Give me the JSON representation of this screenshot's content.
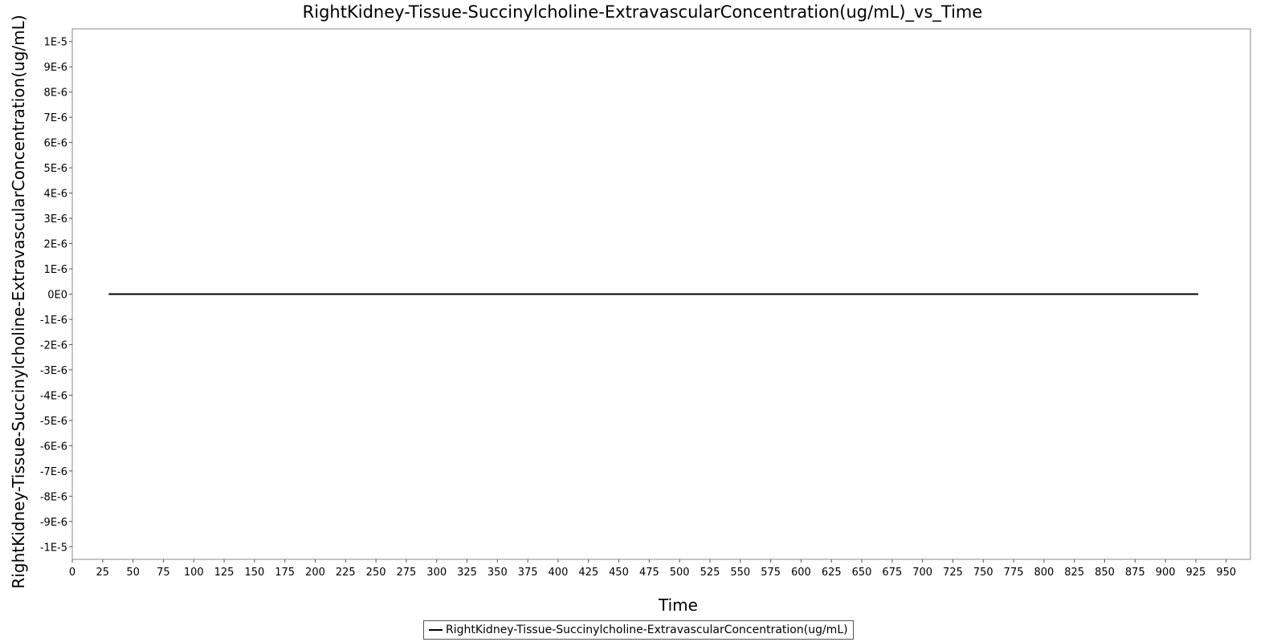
{
  "chart_data": {
    "type": "line",
    "title": "RightKidney-Tissue-Succinylcholine-ExtravascularConcentration(ug/mL)_vs_Time",
    "xlabel": "Time",
    "ylabel": "RightKidney-Tissue-Succinylcholine-ExtravascularConcentration(ug/mL)",
    "xlim": [
      0,
      970
    ],
    "ylim": [
      -1.05e-05,
      1.05e-05
    ],
    "x_ticks": [
      0,
      25,
      50,
      75,
      100,
      125,
      150,
      175,
      200,
      225,
      250,
      275,
      300,
      325,
      350,
      375,
      400,
      425,
      450,
      475,
      500,
      525,
      550,
      575,
      600,
      625,
      650,
      675,
      700,
      725,
      750,
      775,
      800,
      825,
      850,
      875,
      900,
      925,
      950
    ],
    "y_ticks": [
      1e-05,
      9e-06,
      8e-06,
      7e-06,
      6e-06,
      5e-06,
      4e-06,
      3e-06,
      2e-06,
      1e-06,
      0,
      -1e-06,
      -2e-06,
      -3e-06,
      -4e-06,
      -5e-06,
      -6e-06,
      -7e-06,
      -8e-06,
      -9e-06,
      -1e-05
    ],
    "y_tick_labels": [
      "1E-5",
      "9E-6",
      "8E-6",
      "7E-6",
      "6E-6",
      "5E-6",
      "4E-6",
      "3E-6",
      "2E-6",
      "1E-6",
      "0E0",
      "-1E-6",
      "-2E-6",
      "-3E-6",
      "-4E-6",
      "-5E-6",
      "-6E-6",
      "-7E-6",
      "-8E-6",
      "-9E-6",
      "-1E-5"
    ],
    "grid": true,
    "legend_position": "bottom-center",
    "series": [
      {
        "name": "RightKidney-Tissue-Succinylcholine-ExtravascularConcentration(ug/mL)",
        "color": "#000000",
        "x": [
          30,
          100,
          200,
          300,
          400,
          500,
          600,
          700,
          800,
          900,
          927
        ],
        "y": [
          0,
          0,
          0,
          0,
          0,
          0,
          0,
          0,
          0,
          0,
          0
        ]
      }
    ]
  }
}
